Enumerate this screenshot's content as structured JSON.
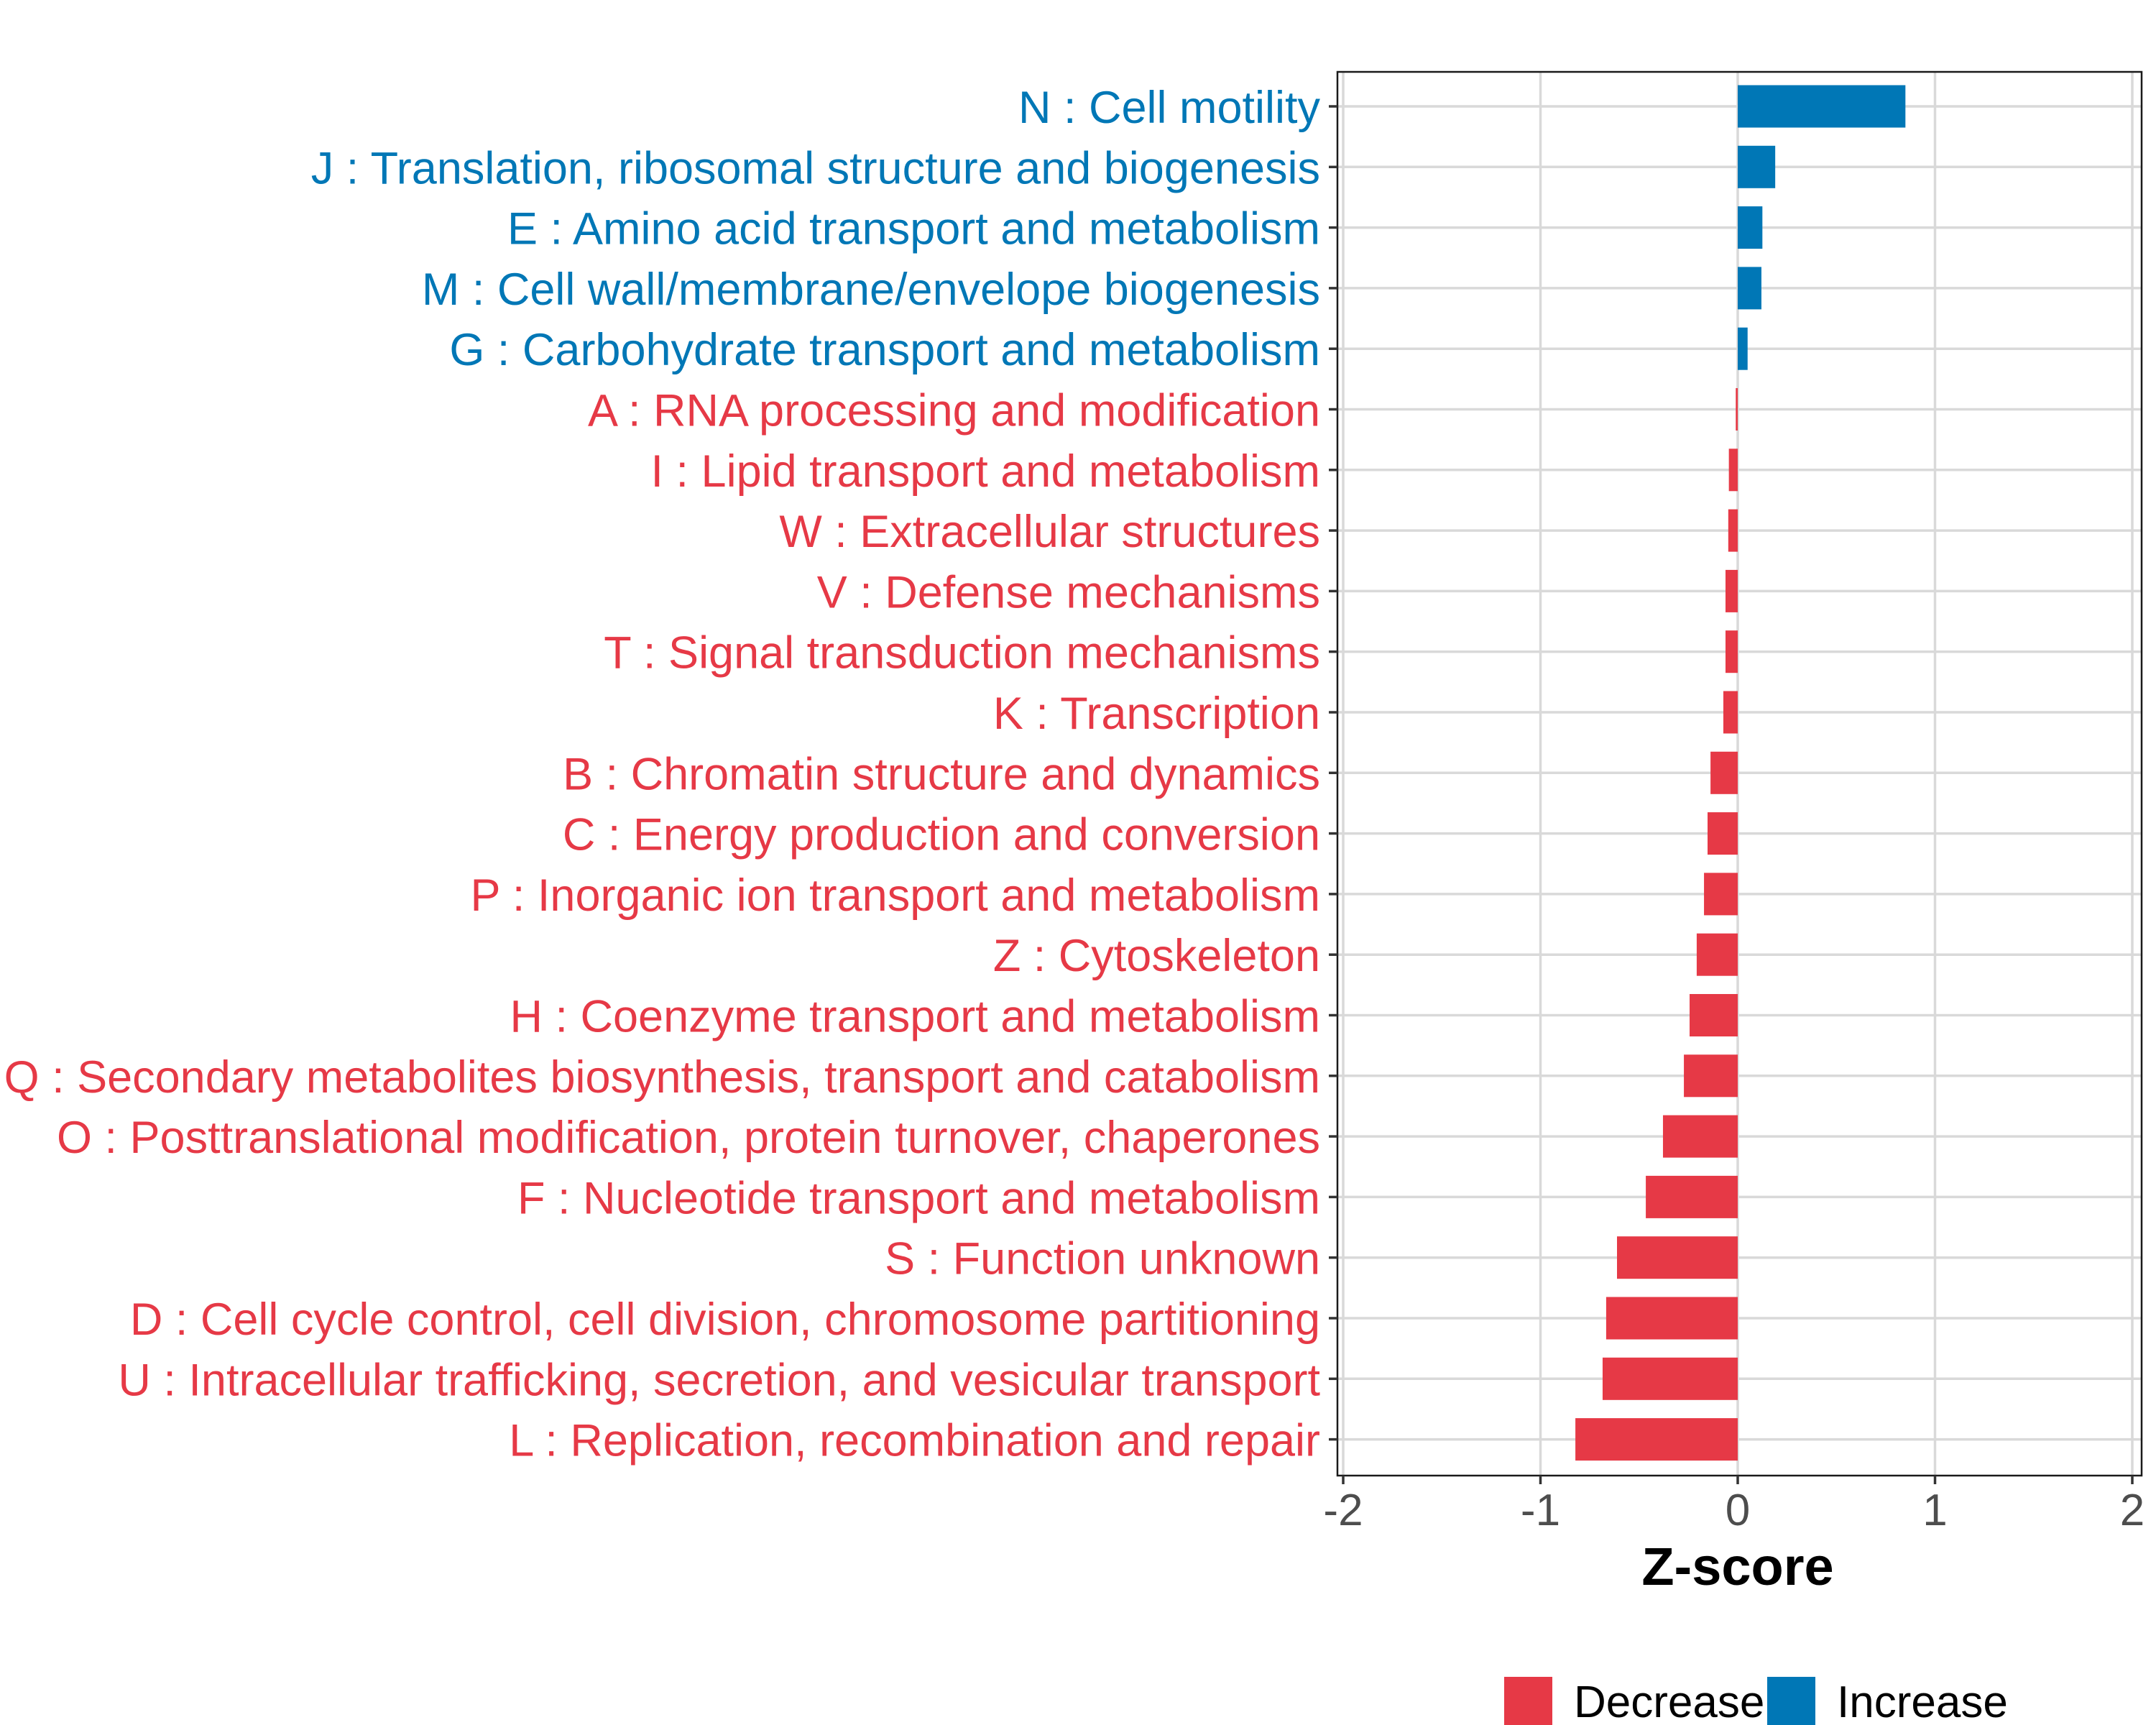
{
  "chart_data": {
    "type": "bar",
    "orientation": "horizontal",
    "title": "",
    "xlabel": "Z-score",
    "ylabel": "",
    "xlim": [
      -2,
      2
    ],
    "xticks": [
      -2,
      -1,
      0,
      1,
      2
    ],
    "xtick_labels": [
      "-2",
      "-1",
      "0",
      "1",
      "2"
    ],
    "grid": true,
    "legend_position": "bottom",
    "colors": {
      "Decrease": "#E63946",
      "Increase": "#0077B6"
    },
    "legend": [
      {
        "label": "Decrease",
        "color": "#E63946"
      },
      {
        "label": "Increase",
        "color": "#0077B6"
      }
    ],
    "categories": [
      "N : Cell motility",
      "J : Translation, ribosomal structure and biogenesis",
      "E : Amino acid transport and metabolism",
      "M : Cell wall/membrane/envelope biogenesis",
      "G : Carbohydrate transport and metabolism",
      "A : RNA processing and modification",
      "I : Lipid transport and metabolism",
      "W : Extracellular structures",
      "V : Defense mechanisms",
      "T : Signal transduction mechanisms",
      "K : Transcription",
      "B : Chromatin structure and dynamics",
      "C : Energy production and conversion",
      "P : Inorganic ion transport and metabolism",
      "Z : Cytoskeleton",
      "H : Coenzyme transport and metabolism",
      "Q : Secondary metabolites biosynthesis, transport and catabolism",
      "O : Posttranslational modification, protein turnover, chaperones",
      "F : Nucleotide transport and metabolism",
      "S : Function unknown",
      "D : Cell cycle control, cell division, chromosome partitioning",
      "U : Intracellular trafficking, secretion, and vesicular transport",
      "L : Replication, recombination and repair"
    ],
    "values": [
      0.85,
      0.19,
      0.125,
      0.12,
      0.05,
      -0.01,
      -0.045,
      -0.048,
      -0.062,
      -0.062,
      -0.073,
      -0.138,
      -0.153,
      -0.171,
      -0.208,
      -0.244,
      -0.273,
      -0.379,
      -0.466,
      -0.612,
      -0.667,
      -0.685,
      -0.823
    ],
    "groups": [
      "Increase",
      "Increase",
      "Increase",
      "Increase",
      "Increase",
      "Decrease",
      "Decrease",
      "Decrease",
      "Decrease",
      "Decrease",
      "Decrease",
      "Decrease",
      "Decrease",
      "Decrease",
      "Decrease",
      "Decrease",
      "Decrease",
      "Decrease",
      "Decrease",
      "Decrease",
      "Decrease",
      "Decrease",
      "Decrease"
    ]
  }
}
